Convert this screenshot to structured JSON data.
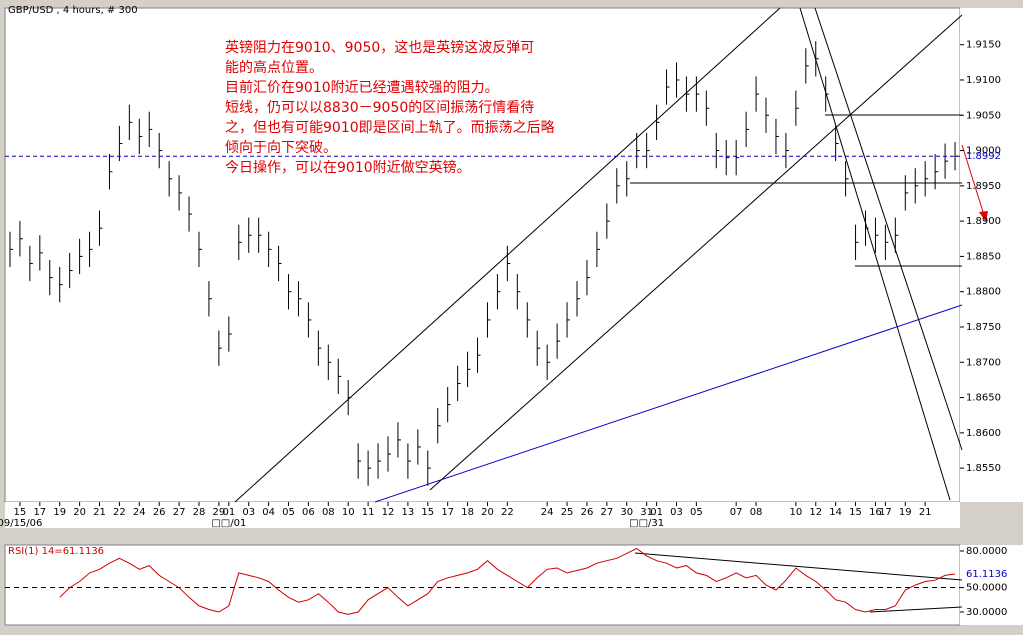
{
  "chart_data": {
    "type": "ohlc",
    "title": "GBP/USD , 4 hours, # 300",
    "annotation": [
      "英镑阻力在9010、9050，这也是英镑这波反弹可",
      "能的高点位置。",
      "目前汇价在9010附近已经遭遇较强的阻力。",
      "短线，仍可以以8830－9050的区间振荡行情看待",
      "之，但也有可能9010即是区间上轨了。而振荡之后略",
      "倾向于向下突破。",
      "今日操作，可以在9010附近做空英镑。"
    ],
    "categories": [
      null,
      "15",
      null,
      "17",
      null,
      "19",
      null,
      "20",
      null,
      "21",
      null,
      "22",
      null,
      "24",
      null,
      "26",
      null,
      "27",
      null,
      "28",
      null,
      "29",
      "01",
      null,
      "03",
      null,
      "04",
      null,
      "05",
      null,
      "06",
      null,
      "08",
      null,
      "10",
      null,
      "11",
      null,
      "12",
      null,
      "13",
      null,
      "15",
      null,
      "17",
      null,
      "18",
      null,
      "20",
      null,
      "22",
      null,
      null,
      null,
      "24",
      null,
      "25",
      null,
      "26",
      null,
      "27",
      null,
      "30",
      null,
      "31",
      "01",
      null,
      "03",
      null,
      "05",
      null,
      null,
      null,
      "07",
      null,
      "08",
      null,
      null,
      null,
      "10",
      null,
      "12",
      null,
      "14",
      null,
      "15",
      null,
      "16",
      "17",
      null,
      "19",
      null,
      "21",
      null,
      null,
      null
    ],
    "categories_row2": [
      null,
      "09/15/06",
      null,
      null,
      null,
      null,
      null,
      null,
      null,
      null,
      null,
      null,
      null,
      null,
      null,
      null,
      null,
      null,
      null,
      null,
      null,
      null,
      "□□/01",
      null,
      null,
      null,
      null,
      null,
      null,
      null,
      null,
      null,
      null,
      null,
      null,
      null,
      null,
      null,
      null,
      null,
      null,
      null,
      null,
      null,
      null,
      null,
      null,
      null,
      null,
      null,
      null,
      null,
      null,
      null,
      null,
      null,
      null,
      null,
      null,
      null,
      null,
      null,
      null,
      null,
      "□□/31",
      null,
      null,
      null,
      null,
      null,
      null,
      null,
      null,
      null,
      null,
      null,
      null,
      null,
      null,
      null,
      null,
      null,
      null,
      null,
      null,
      null,
      null,
      null,
      null,
      null,
      null,
      null,
      null,
      null,
      null,
      null
    ],
    "series": [
      {
        "name": "high",
        "color": "#000000",
        "values": [
          1.8885,
          1.89,
          1.8865,
          1.888,
          1.8845,
          1.8835,
          1.8855,
          1.8875,
          1.8885,
          1.8915,
          1.8995,
          1.9035,
          1.9065,
          1.9045,
          1.9055,
          1.9025,
          1.8985,
          1.8965,
          1.8935,
          1.8885,
          1.8815,
          1.8745,
          1.8765,
          1.8895,
          1.8905,
          1.8905,
          1.8885,
          1.8865,
          1.8825,
          1.8815,
          1.8785,
          1.8745,
          1.8725,
          1.8705,
          1.8675,
          1.8585,
          1.8575,
          1.8585,
          1.8595,
          1.8615,
          1.8585,
          1.8605,
          1.8575,
          1.8635,
          1.8665,
          1.8695,
          1.8715,
          1.8735,
          1.8785,
          1.8825,
          1.8865,
          1.8825,
          1.8785,
          1.8745,
          1.8725,
          1.8755,
          1.8785,
          1.8815,
          1.8845,
          1.8885,
          1.8925,
          1.8975,
          1.8985,
          1.9025,
          1.9025,
          1.9065,
          1.9115,
          1.9125,
          1.9105,
          1.9105,
          1.9085,
          1.9025,
          1.9015,
          1.9015,
          1.9055,
          1.9105,
          1.9075,
          1.9045,
          1.9025,
          1.9085,
          1.9145,
          1.9155,
          1.9105,
          1.9035,
          1.8985,
          1.8895,
          1.8915,
          1.8905,
          1.8895,
          1.8905,
          1.8965,
          1.8975,
          1.8985,
          1.8995,
          1.901,
          1.9012
        ]
      },
      {
        "name": "low",
        "color": "#000000",
        "values": [
          1.8835,
          1.885,
          1.8815,
          1.883,
          1.8795,
          1.8785,
          1.8805,
          1.8825,
          1.8835,
          1.8865,
          1.8945,
          1.8985,
          1.9015,
          1.8995,
          1.9005,
          1.8975,
          1.8935,
          1.8915,
          1.8885,
          1.8835,
          1.8765,
          1.8695,
          1.8715,
          1.8845,
          1.8855,
          1.8855,
          1.8835,
          1.8815,
          1.8775,
          1.8765,
          1.8735,
          1.8695,
          1.8675,
          1.8655,
          1.8625,
          1.8535,
          1.8525,
          1.8535,
          1.8545,
          1.8565,
          1.8535,
          1.8555,
          1.8525,
          1.8585,
          1.8615,
          1.8645,
          1.8665,
          1.8685,
          1.8735,
          1.8775,
          1.8815,
          1.8775,
          1.8735,
          1.8695,
          1.8675,
          1.8705,
          1.8735,
          1.8765,
          1.8795,
          1.8835,
          1.8875,
          1.8925,
          1.8935,
          1.8975,
          1.8975,
          1.9015,
          1.9065,
          1.9075,
          1.9055,
          1.9055,
          1.9035,
          1.8975,
          1.8965,
          1.8965,
          1.9005,
          1.9055,
          1.9025,
          1.8995,
          1.8975,
          1.9035,
          1.9095,
          1.9105,
          1.9055,
          1.8985,
          1.8935,
          1.8845,
          1.8865,
          1.8855,
          1.8845,
          1.8855,
          1.8915,
          1.8925,
          1.8935,
          1.8945,
          1.896,
          1.8972
        ]
      },
      {
        "name": "close",
        "color": "#000000",
        "values": [
          1.886,
          1.8875,
          1.884,
          1.8855,
          1.882,
          1.881,
          1.883,
          1.885,
          1.886,
          1.889,
          1.897,
          1.901,
          1.904,
          1.902,
          1.903,
          1.9,
          1.896,
          1.894,
          1.891,
          1.886,
          1.879,
          1.872,
          1.874,
          1.887,
          1.888,
          1.888,
          1.886,
          1.884,
          1.88,
          1.879,
          1.876,
          1.872,
          1.87,
          1.868,
          1.865,
          1.856,
          1.855,
          1.856,
          1.857,
          1.859,
          1.856,
          1.858,
          1.855,
          1.861,
          1.864,
          1.867,
          1.869,
          1.871,
          1.876,
          1.88,
          1.884,
          1.88,
          1.876,
          1.872,
          1.87,
          1.873,
          1.876,
          1.879,
          1.882,
          1.886,
          1.89,
          1.895,
          1.896,
          1.9,
          1.9,
          1.904,
          1.909,
          1.91,
          1.908,
          1.908,
          1.906,
          1.9,
          1.899,
          1.899,
          1.903,
          1.908,
          1.905,
          1.902,
          1.9,
          1.906,
          1.912,
          1.913,
          1.908,
          1.901,
          1.896,
          1.887,
          1.889,
          1.888,
          1.887,
          1.888,
          1.894,
          1.895,
          1.896,
          1.897,
          1.8985,
          1.8992
        ]
      }
    ],
    "last_color": "#0000cc",
    "ylim": [
      1.8502,
      1.9202
    ],
    "yticks": [
      {
        "value": 1.855,
        "label": "1.8550"
      },
      {
        "value": 1.86,
        "label": "1.8600"
      },
      {
        "value": 1.865,
        "label": "1.8650"
      },
      {
        "value": 1.87,
        "label": "1.8700"
      },
      {
        "value": 1.875,
        "label": "1.8750"
      },
      {
        "value": 1.88,
        "label": "1.8800"
      },
      {
        "value": 1.885,
        "label": "1.8850"
      },
      {
        "value": 1.89,
        "label": "1.8900"
      },
      {
        "value": 1.895,
        "label": "1.8950"
      },
      {
        "value": 1.9,
        "label": "1.9000"
      },
      {
        "value": 1.905,
        "label": "1.9050"
      },
      {
        "value": 1.91,
        "label": "1.9100"
      },
      {
        "value": 1.915,
        "label": "1.9150"
      }
    ],
    "rsi": {
      "title": "RSI(1) 14=61.1136",
      "color": "#cc0000",
      "values": [
        null,
        null,
        null,
        null,
        null,
        42,
        50,
        55,
        62,
        65,
        70,
        74,
        70,
        65,
        68,
        60,
        55,
        50,
        42,
        35,
        32,
        30,
        35,
        62,
        60,
        58,
        55,
        48,
        42,
        38,
        40,
        45,
        38,
        30,
        28,
        30,
        40,
        45,
        50,
        42,
        35,
        40,
        45,
        55,
        58,
        60,
        62,
        65,
        72,
        65,
        60,
        55,
        50,
        58,
        65,
        66,
        62,
        64,
        66,
        70,
        72,
        74,
        78,
        82,
        76,
        72,
        70,
        66,
        68,
        62,
        60,
        55,
        58,
        62,
        58,
        60,
        52,
        48,
        56,
        66,
        60,
        55,
        48,
        40,
        38,
        32,
        30,
        32,
        32,
        35,
        48,
        52,
        55,
        56,
        60,
        61.1136
      ],
      "ylim": [
        19.3,
        84.9
      ],
      "yticks": [
        {
          "value": 80,
          "label": "80.0000"
        },
        {
          "value": 50,
          "label": "50.0000"
        },
        {
          "value": 30,
          "label": "30.0000"
        }
      ]
    }
  }
}
